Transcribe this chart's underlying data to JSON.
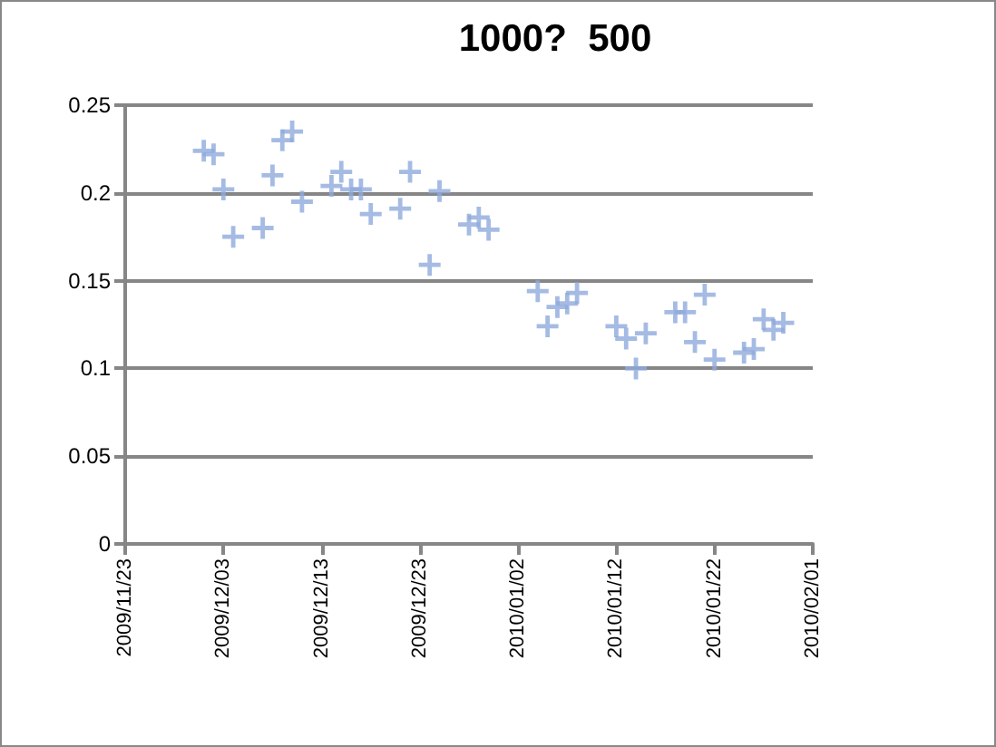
{
  "chart_data": {
    "type": "scatter",
    "title": "1000?  500",
    "x": [
      "2009-12-01",
      "2009-12-02",
      "2009-12-03",
      "2009-12-04",
      "2009-12-07",
      "2009-12-08",
      "2009-12-09",
      "2009-12-10",
      "2009-12-11",
      "2009-12-14",
      "2009-12-15",
      "2009-12-16",
      "2009-12-17",
      "2009-12-18",
      "2009-12-21",
      "2009-12-22",
      "2009-12-24",
      "2009-12-25",
      "2009-12-28",
      "2009-12-29",
      "2009-12-30",
      "2010-01-04",
      "2010-01-05",
      "2010-01-06",
      "2010-01-07",
      "2010-01-08",
      "2010-01-12",
      "2010-01-13",
      "2010-01-14",
      "2010-01-15",
      "2010-01-18",
      "2010-01-19",
      "2010-01-20",
      "2010-01-21",
      "2010-01-22",
      "2010-01-25",
      "2010-01-26",
      "2010-01-27",
      "2010-01-28",
      "2010-01-29"
    ],
    "series": [
      {
        "color": "#8faadc",
        "values": [
          0.224,
          0.222,
          0.202,
          0.175,
          0.18,
          0.21,
          0.23,
          0.235,
          0.195,
          0.204,
          0.212,
          0.202,
          0.202,
          0.188,
          0.191,
          0.212,
          0.159,
          0.201,
          0.182,
          0.186,
          0.179,
          0.144,
          0.124,
          0.135,
          0.137,
          0.143,
          0.124,
          0.117,
          0.1,
          0.12,
          0.132,
          0.132,
          0.115,
          0.142,
          0.105,
          0.109,
          0.111,
          0.128,
          0.122,
          0.126
        ]
      }
    ],
    "xlim": [
      "2009-11-23",
      "2010-02-01"
    ],
    "xticks": [
      {
        "value": "2009-11-23",
        "label": "2009/11/23"
      },
      {
        "value": "2009-12-03",
        "label": "2009/12/03"
      },
      {
        "value": "2009-12-13",
        "label": "2009/12/13"
      },
      {
        "value": "2009-12-23",
        "label": "2009/12/23"
      },
      {
        "value": "2010-01-02",
        "label": "2010/01/02"
      },
      {
        "value": "2010-01-12",
        "label": "2010/01/12"
      },
      {
        "value": "2010-01-22",
        "label": "2010/01/22"
      },
      {
        "value": "2010-02-01",
        "label": "2010/02/01"
      }
    ],
    "ylim": [
      0,
      0.25
    ],
    "yticks": [
      0,
      0.05,
      0.1,
      0.15,
      0.2,
      0.25
    ],
    "grid": "y",
    "marker": "cross"
  }
}
